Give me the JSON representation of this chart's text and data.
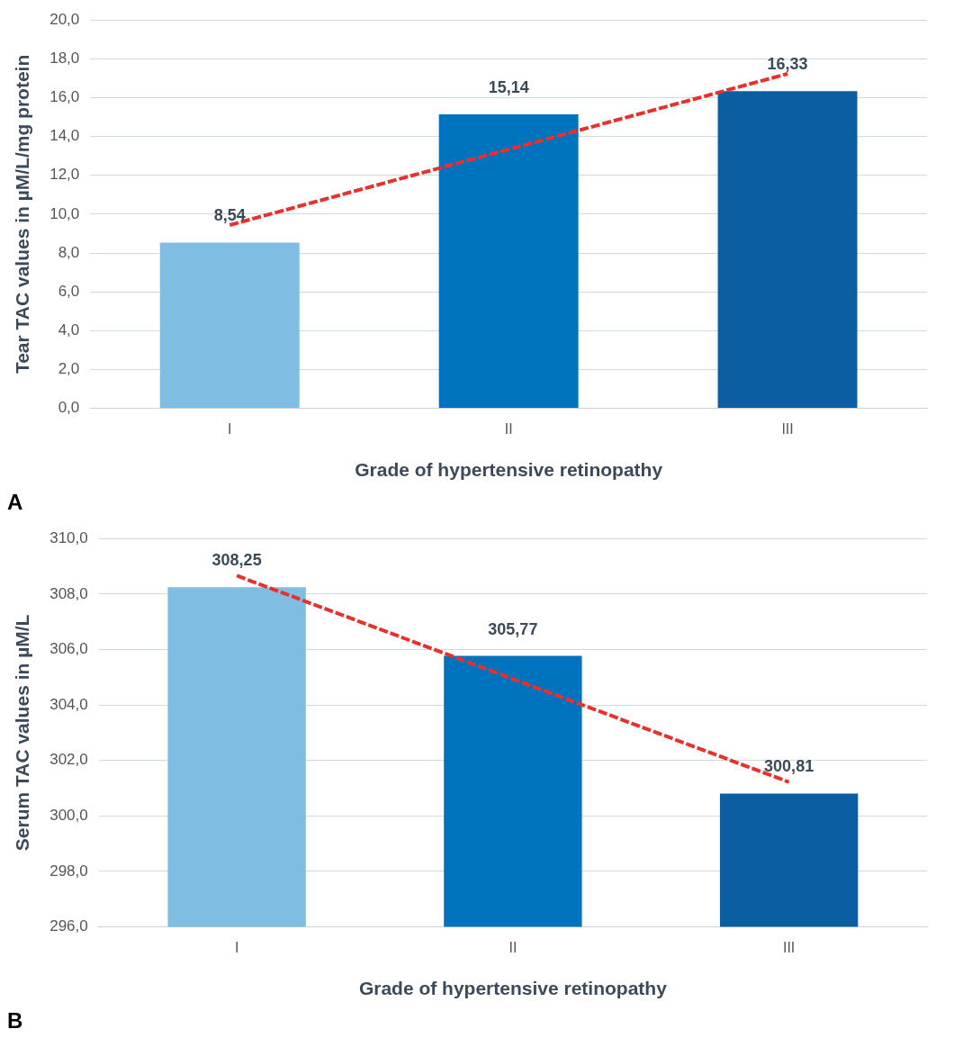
{
  "chart_data": [
    {
      "type": "bar",
      "ylabel": "Tear TAC values in µM/L/mg protein",
      "xlabel": "Grade of hypertensive retinopathy",
      "categories": [
        "I",
        "II",
        "III"
      ],
      "series": [
        {
          "colors": [
            "#7fbde3",
            "#0073bf",
            "#0c5ea3"
          ],
          "values": [
            8.54,
            15.14,
            16.33
          ],
          "value_labels": [
            "8,54",
            "15,14",
            "16,33"
          ]
        },
        {
          "type": "line",
          "color": "#e8302c",
          "line_style": "dashed",
          "marker": "none",
          "x": [
            "I",
            "II",
            "III"
          ],
          "values": [
            9.44,
            13.34,
            17.23
          ]
        }
      ],
      "ylim": [
        0,
        20
      ],
      "yticks": [
        {
          "value": 0,
          "label": "0,0"
        },
        {
          "value": 2,
          "label": "2,0"
        },
        {
          "value": 4,
          "label": "4,0"
        },
        {
          "value": 6,
          "label": "6,0"
        },
        {
          "value": 8,
          "label": "8,0"
        },
        {
          "value": 10,
          "label": "10,0"
        },
        {
          "value": 12,
          "label": "12,0"
        },
        {
          "value": 14,
          "label": "14,0"
        },
        {
          "value": 16,
          "label": "16,0"
        },
        {
          "value": 18,
          "label": "18,0"
        },
        {
          "value": 20,
          "label": "20,0"
        }
      ],
      "grid": "y",
      "annotations": [
        "A"
      ]
    },
    {
      "type": "bar",
      "ylabel": "Serum TAC values in µM/L",
      "xlabel": "Grade of hypertensive retinopathy",
      "categories": [
        "I",
        "II",
        "III"
      ],
      "series": [
        {
          "colors": [
            "#7fbde3",
            "#0073bf",
            "#0c5ea3"
          ],
          "values": [
            308.25,
            305.77,
            300.81
          ],
          "value_labels": [
            "308,25",
            "305,77",
            "300,81"
          ]
        },
        {
          "type": "line",
          "color": "#e8302c",
          "line_style": "dashed",
          "marker": "none",
          "x": [
            "I",
            "II",
            "III"
          ],
          "values": [
            308.66,
            304.94,
            301.22
          ]
        }
      ],
      "ylim": [
        296,
        310
      ],
      "yticks": [
        {
          "value": 296,
          "label": "296,0"
        },
        {
          "value": 298,
          "label": "298,0"
        },
        {
          "value": 300,
          "label": "300,0"
        },
        {
          "value": 302,
          "label": "302,0"
        },
        {
          "value": 304,
          "label": "304,0"
        },
        {
          "value": 306,
          "label": "306,0"
        },
        {
          "value": 308,
          "label": "308,0"
        },
        {
          "value": 310,
          "label": "310,0"
        }
      ],
      "grid": "y",
      "annotations": [
        "B"
      ]
    }
  ]
}
